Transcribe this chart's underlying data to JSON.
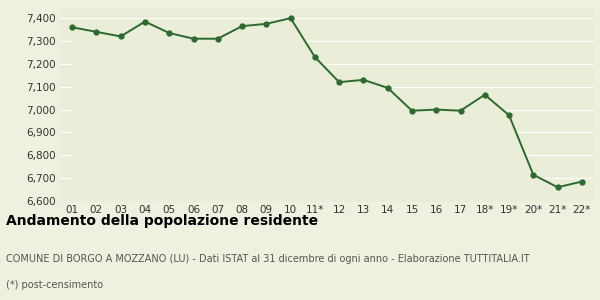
{
  "x_labels": [
    "01",
    "02",
    "03",
    "04",
    "05",
    "06",
    "07",
    "08",
    "09",
    "10",
    "11*",
    "12",
    "13",
    "14",
    "15",
    "16",
    "17",
    "18*",
    "19*",
    "20*",
    "21*",
    "22*"
  ],
  "y_values": [
    7360,
    7340,
    7320,
    7385,
    7335,
    7310,
    7310,
    7365,
    7375,
    7400,
    7230,
    7120,
    7130,
    7095,
    6995,
    7000,
    6995,
    7065,
    6975,
    6715,
    6660,
    6685
  ],
  "line_color": "#2d6a2d",
  "fill_color": "#eaedd8",
  "bg_color": "#f0f0e0",
  "marker_color": "#2d6a2d",
  "ylim_min": 6600,
  "ylim_max": 7440,
  "yticks": [
    6600,
    6700,
    6800,
    6900,
    7000,
    7100,
    7200,
    7300,
    7400
  ],
  "title_bold": "Andamento della popolazione residente",
  "subtitle1": "COMUNE DI BORGO A MOZZANO (LU) - Dati ISTAT al 31 dicembre di ogni anno - Elaborazione TUTTITALIA.IT",
  "subtitle2": "(*) post-censimento",
  "grid_color": "#ffffff",
  "title_fontsize": 10,
  "subtitle_fontsize": 7,
  "tick_fontsize": 7.5
}
